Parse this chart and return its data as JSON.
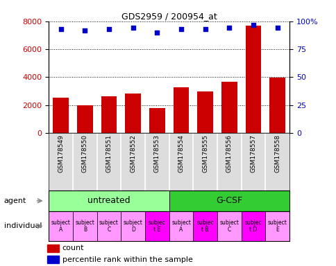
{
  "title": "GDS2959 / 200954_at",
  "samples": [
    "GSM178549",
    "GSM178550",
    "GSM178551",
    "GSM178552",
    "GSM178553",
    "GSM178554",
    "GSM178555",
    "GSM178556",
    "GSM178557",
    "GSM178558"
  ],
  "counts": [
    2550,
    2000,
    2650,
    2850,
    1800,
    3250,
    3000,
    3650,
    7700,
    3950
  ],
  "percentiles": [
    93,
    92,
    93,
    94,
    90,
    93,
    93,
    94,
    97,
    94
  ],
  "ylim_left": [
    0,
    8000
  ],
  "ylim_right": [
    0,
    100
  ],
  "yticks_left": [
    0,
    2000,
    4000,
    6000,
    8000
  ],
  "yticks_right": [
    0,
    25,
    50,
    75,
    100
  ],
  "bar_color": "#cc0000",
  "dot_color": "#0000cc",
  "agent_groups": [
    {
      "label": "untreated",
      "start": 0,
      "end": 5,
      "color": "#99ff99"
    },
    {
      "label": "G-CSF",
      "start": 5,
      "end": 10,
      "color": "#33cc33"
    }
  ],
  "indiv_labels": [
    "subject\nA",
    "subject\nB",
    "subject\nC",
    "subject\nD",
    "subjec\nt E",
    "subject\nA",
    "subjec\nt B",
    "subject\nC",
    "subjec\nt D",
    "subject\nE"
  ],
  "indiv_colors": [
    "#ff99ff",
    "#ff99ff",
    "#ff99ff",
    "#ff99ff",
    "#ff00ff",
    "#ff99ff",
    "#ff00ff",
    "#ff99ff",
    "#ff00ff",
    "#ff99ff"
  ],
  "legend_count_color": "#cc0000",
  "legend_dot_color": "#0000cc",
  "tick_color_left": "#cc0000",
  "tick_color_right": "#0000cc",
  "sample_box_color": "#dddddd",
  "left_label_agent": "agent",
  "left_label_indiv": "individual",
  "legend_count": "count",
  "legend_pct": "percentile rank within the sample"
}
